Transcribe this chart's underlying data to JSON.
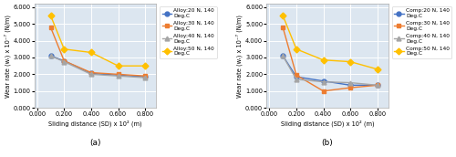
{
  "x": [
    0.1,
    0.2,
    0.4,
    0.6,
    0.8
  ],
  "alloy": {
    "20N": [
      3.1,
      2.8,
      2.05,
      1.95,
      1.85
    ],
    "30N": [
      4.8,
      2.8,
      2.1,
      2.0,
      1.9
    ],
    "40N": [
      3.1,
      2.75,
      2.0,
      1.9,
      1.8
    ],
    "50N": [
      5.5,
      3.5,
      3.3,
      2.5,
      2.5
    ]
  },
  "comp": {
    "20N": [
      3.1,
      1.85,
      1.6,
      1.35,
      1.35
    ],
    "30N": [
      4.8,
      1.95,
      1.0,
      1.2,
      1.35
    ],
    "40N": [
      3.1,
      1.7,
      1.55,
      1.5,
      1.35
    ],
    "50N": [
      5.5,
      3.5,
      2.85,
      2.75,
      2.3
    ]
  },
  "colors": {
    "20N": "#4472C4",
    "30N": "#ED7D31",
    "40N": "#A5A5A5",
    "50N": "#FFC000"
  },
  "markers": {
    "20N": "o",
    "30N": "s",
    "40N": "^",
    "50N": "D"
  },
  "legend_alloy": [
    "Alloy:20 N, 140\nDeg.C",
    "Alloy:30 N, 140\nDeg.C",
    "Alloy:40 N, 140\nDeg.C",
    "Alloy:50 N, 140\nDeg.C"
  ],
  "legend_comp": [
    "Comp:20 N, 140\nDeg.C",
    "Comp:30 N, 140\nDeg.C",
    "Comp:40 N, 140\nDeg.C",
    "Comp:50 N, 140\nDeg.C"
  ],
  "xlabel": "Sliding distance (SD) x 10² (m)",
  "ylabel": "Wear rate (wᵣ) x 10⁻⁷ (N/m)",
  "xlim": [
    -0.02,
    0.88
  ],
  "ylim": [
    0.0,
    6.2
  ],
  "xticks": [
    0.0,
    0.2,
    0.4,
    0.6,
    0.8
  ],
  "yticks": [
    0.0,
    1.0,
    2.0,
    3.0,
    4.0,
    5.0,
    6.0
  ],
  "subtitle_a": "(a)",
  "subtitle_b": "(b)",
  "plot_bg": "#dce6f0",
  "fig_bg": "#ffffff",
  "grid_color": "#ffffff",
  "linewidth": 1.0,
  "markersize": 3.5,
  "tick_fontsize": 4.8,
  "label_fontsize": 4.8,
  "legend_fontsize": 4.2,
  "subtitle_fontsize": 6.5
}
